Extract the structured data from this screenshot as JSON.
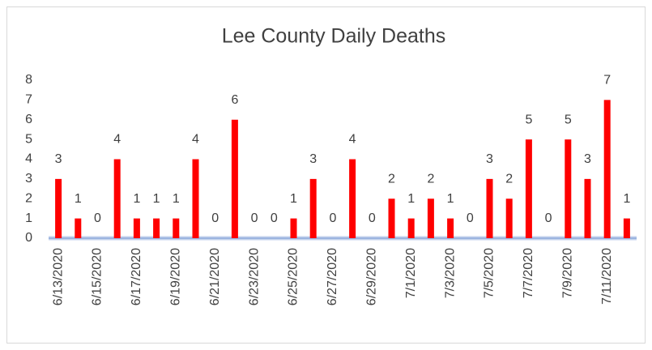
{
  "chart_data": {
    "type": "bar",
    "title": "Lee County Daily Deaths",
    "categories": [
      "6/13/2020",
      null,
      "6/15/2020",
      null,
      "6/17/2020",
      null,
      "6/19/2020",
      null,
      "6/21/2020",
      null,
      "6/23/2020",
      null,
      "6/25/2020",
      null,
      "6/27/2020",
      null,
      "6/29/2020",
      null,
      "7/1/2020",
      null,
      "7/3/2020",
      null,
      "7/5/2020",
      null,
      "7/7/2020",
      null,
      "7/9/2020",
      null,
      "7/11/2020",
      null
    ],
    "values": [
      3,
      1,
      0,
      4,
      1,
      1,
      1,
      4,
      0,
      6,
      0,
      0,
      1,
      3,
      0,
      4,
      0,
      2,
      1,
      2,
      1,
      0,
      3,
      2,
      5,
      0,
      5,
      3,
      7,
      1
    ],
    "color": "#ff0000",
    "ylim": [
      0,
      8
    ],
    "yticks": [
      0,
      1,
      2,
      3,
      4,
      5,
      6,
      7,
      8
    ],
    "grid": false
  }
}
